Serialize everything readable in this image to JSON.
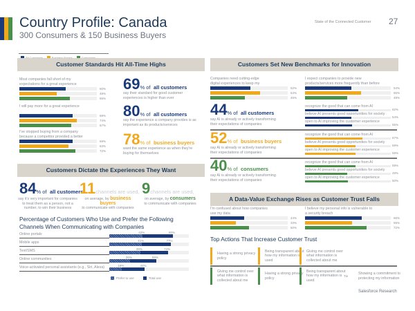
{
  "colors": {
    "all": "#1b3a7a",
    "business": "#f0a81c",
    "consumers": "#4a8f4a",
    "navy": "#1d3a5a"
  },
  "header": {
    "title": "Country Profile: Canada",
    "subtitle": "300 Consumers & 150 Business Buyers",
    "running_head": "State of the Connected Customer",
    "page_number": "27"
  },
  "legend": [
    "All Customers",
    "Business Buyers",
    "Consumers"
  ],
  "standards": {
    "title": "Customer Standards Hit All-Time Highs",
    "groups": [
      {
        "label": "Most companies fall short of my expectations for a great experience",
        "values": [
          60,
          48,
          65
        ]
      },
      {
        "label": "I will pay more for a great experience",
        "values": [
          69,
          74,
          67
        ]
      },
      {
        "label": "I've stopped buying from a company because a competitor provided a better experience",
        "values": [
          69,
          63,
          72
        ]
      }
    ],
    "stats": [
      {
        "number": "69",
        "suffix": "% of",
        "who": "all customers",
        "text": "say their standard for good customer experiences is higher than ever"
      },
      {
        "number": "80",
        "suffix": "% of",
        "who": "all customers",
        "text": "say the experience a company provides is as important as its products/services"
      },
      {
        "number": "78",
        "suffix": "% of",
        "who": "business buyers",
        "text": "want the same experience as when they're buying for themselves"
      }
    ]
  },
  "innovation": {
    "title": "Customers Set New Benchmarks for Innovation",
    "groups": [
      {
        "label": "Companies need cutting-edge digital experiences to keep my business",
        "values": [
          52,
          64,
          45
        ]
      },
      {
        "label": "I expect companies to provide new products/services more frequently than before",
        "values": [
          54,
          65,
          49
        ]
      }
    ],
    "ai": [
      {
        "number": "44",
        "suffix": "% of",
        "who": "all customers",
        "text": "say AI is already or actively transforming their expectations of companies",
        "items": [
          {
            "label": "recognize the good that can come from AI",
            "value": 62
          },
          {
            "label": "believe AI presents good opportunities for society",
            "value": 54
          },
          {
            "label": "open to AI improving the customer experience",
            "value": 55
          }
        ]
      },
      {
        "number": "52",
        "suffix": "% of",
        "who": "business buyers",
        "text": "say AI is already or actively transforming their expectations of companies",
        "items": [
          {
            "label": "recognize the good that can come from AI",
            "value": 67
          },
          {
            "label": "believe AI presents good opportunities for society",
            "value": 59
          },
          {
            "label": "open to AI improving the customer experience",
            "value": 59
          }
        ]
      },
      {
        "number": "40",
        "suffix": "% of",
        "who": "consumers",
        "text": "say AI is already or actively transforming their expectations of companies",
        "items": [
          {
            "label": "recognize the good that can come from AI",
            "value": 59
          },
          {
            "label": "believe AI presents good opportunities for society",
            "value": 49
          },
          {
            "label": "open to AI improving the customer experience",
            "value": 50
          }
        ]
      }
    ]
  },
  "dictate": {
    "title": "Customers Dictate the Experiences They Want",
    "stats": [
      {
        "number": "84",
        "suffix": "% of",
        "who": "all customers",
        "text": "say it's very important for companies to treat them as a person, not a number, to win their business"
      },
      {
        "number": "11",
        "suffix": "channels are used,",
        "pre": "on average, by",
        "who": "business buyers",
        "text": "to communicate with companies"
      },
      {
        "number": "9",
        "suffix": "channels are used,",
        "pre": "on average, by",
        "who": "consumers",
        "text": "to communicate with companies"
      }
    ]
  },
  "chart_data": {
    "type": "bar",
    "title": "Percentage of Customers Who Use and Prefer the Following Channels When Communicating with Companies",
    "categories": [
      "Online portals",
      "Mobile apps",
      "Text/SMS",
      "Online communities",
      "Voice-activated personal assistants (e.g., Siri, Alexa)"
    ],
    "series": [
      {
        "name": "Prefer to use",
        "values": [
          42,
          41,
          39,
          26,
          16
        ]
      },
      {
        "name": "Total use",
        "values": [
          80,
          77,
          74,
          59,
          44
        ]
      }
    ],
    "ylim": [
      0,
      100
    ]
  },
  "trust": {
    "title": "A Data-Value Exchange Rises as Customer Trust Falls",
    "groups": [
      {
        "label": "I'm confused about how companies use my data",
        "values": [
          44,
          33,
          50
        ]
      },
      {
        "label": "I believe my personal info is vulnerable to a security breach",
        "values": [
          66,
          55,
          72
        ]
      }
    ],
    "actions_title": "Top Actions That Increase Customer Trust",
    "business_actions": [
      "Having a strong privacy policy",
      "Being transparent about how my information is used",
      "Giving me control over what information is collected about me"
    ],
    "consumer_actions": [
      "Giving me control over what information is collected about me",
      "Having a strong privacy policy",
      "Being transparent about how my information is used",
      "Showing a commitment to protecting my information"
    ],
    "tie_label": "Tie"
  },
  "footer": "Salesforce Research"
}
